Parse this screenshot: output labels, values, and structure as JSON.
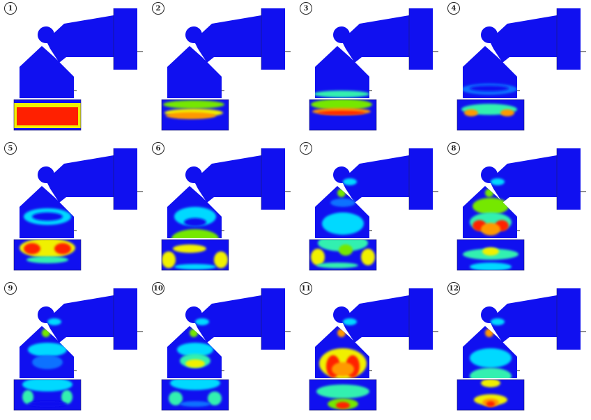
{
  "colors": {
    "background": "#ffffff",
    "scale": [
      "#1010f0",
      "#0a72ff",
      "#00d9ff",
      "#33f0b0",
      "#74e800",
      "#f0f000",
      "#ff9900",
      "#ff2000"
    ]
  },
  "frames": [
    {
      "label": "1"
    },
    {
      "label": "2"
    },
    {
      "label": "3"
    },
    {
      "label": "4"
    },
    {
      "label": "5"
    },
    {
      "label": "6"
    },
    {
      "label": "7"
    },
    {
      "label": "8"
    },
    {
      "label": "9"
    },
    {
      "label": "10"
    },
    {
      "label": "11"
    },
    {
      "label": "12"
    }
  ]
}
